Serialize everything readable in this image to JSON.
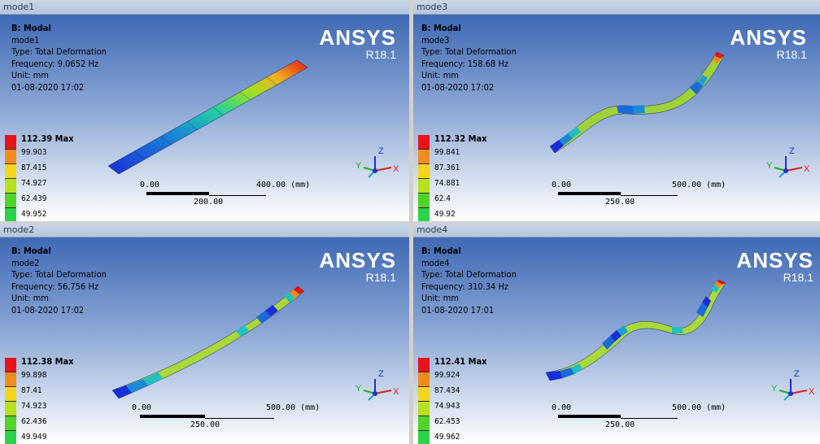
{
  "panes": [
    {
      "id": "mode1",
      "window_title": "mode1",
      "info": [
        "B: Modal",
        "mode1",
        "Type: Total Deformation",
        "Frequency: 9.0652 Hz",
        "Unit: mm",
        "01-08-2020 17:02"
      ],
      "brand_name": "ANSYS",
      "brand_version": "R18.1",
      "legend": [
        "112.39 Max",
        "99.903",
        "87.415",
        "74.927",
        "62.439",
        "49.952"
      ],
      "scale": {
        "start": "0.00",
        "mid": "200.00",
        "end": "400.00 (mm)"
      }
    },
    {
      "id": "mode3",
      "window_title": "mode3",
      "info": [
        "B: Modal",
        "mode3",
        "Type: Total Deformation",
        "Frequency: 158.68 Hz",
        "Unit: mm",
        "01-08-2020 17:02"
      ],
      "brand_name": "ANSYS",
      "brand_version": "R18.1",
      "legend": [
        "112.32 Max",
        "99.841",
        "87.361",
        "74.881",
        "62.4",
        "49.92"
      ],
      "scale": {
        "start": "0.00",
        "mid": "250.00",
        "end": "500.00 (mm)"
      }
    },
    {
      "id": "mode2",
      "window_title": "mode2",
      "info": [
        "B: Modal",
        "mode2",
        "Type: Total Deformation",
        "Frequency: 56.756 Hz",
        "Unit: mm",
        "01-08-2020 17:02"
      ],
      "brand_name": "ANSYS",
      "brand_version": "R18.1",
      "legend": [
        "112.38 Max",
        "99.898",
        "87.41",
        "74.923",
        "62.436",
        "49.949"
      ],
      "scale": {
        "start": "0.00",
        "mid": "250.00",
        "end": "500.00 (mm)"
      }
    },
    {
      "id": "mode4",
      "window_title": "mode4",
      "info": [
        "B: Modal",
        "mode4",
        "Type: Total Deformation",
        "Frequency: 310.34 Hz",
        "Unit: mm",
        "01-08-2020 17:01"
      ],
      "brand_name": "ANSYS",
      "brand_version": "R18.1",
      "legend": [
        "112.41 Max",
        "99.924",
        "87.434",
        "74.943",
        "62.453",
        "49.962"
      ],
      "scale": {
        "start": "0.00",
        "mid": "250.00",
        "end": "500.00 (mm)"
      }
    }
  ],
  "legend_colors": [
    "#e8141b",
    "#f08c1e",
    "#f5d41e",
    "#b8e01e",
    "#52d32a",
    "#2ad34a"
  ],
  "triad_labels": {
    "x": "X",
    "y": "Y",
    "z": "Z"
  },
  "triad_colors": {
    "x": "#e02020",
    "y": "#20b020",
    "z": "#2030d0"
  }
}
